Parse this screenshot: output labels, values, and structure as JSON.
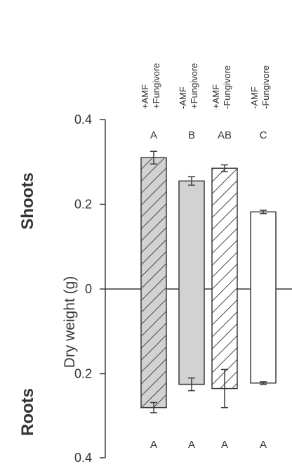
{
  "chart_data": {
    "type": "bar",
    "categories": [
      "+AMF\n+Fungivore",
      "-AMF\n+Fungivore",
      "+AMF\n-Fungivore",
      "-AMF\n-Fungivore"
    ],
    "series": [
      {
        "name": "Shoots",
        "values": [
          0.31,
          0.255,
          0.285,
          0.182
        ],
        "errors": [
          0.015,
          0.01,
          0.008,
          0.004
        ]
      },
      {
        "name": "Roots",
        "values": [
          0.28,
          0.225,
          0.235,
          0.222
        ],
        "errors": [
          0.012,
          0.015,
          0.045,
          0.003
        ]
      }
    ],
    "ylabel": "Dry weight (g)",
    "yticks": [
      "0.4",
      "0.2",
      "0",
      "0.2",
      "0.4"
    ],
    "ylim": [
      -0.4,
      0.4
    ],
    "grid": false,
    "panel_labels": {
      "top": "Shoots",
      "bottom": "Roots"
    },
    "letters": {
      "top": [
        "A",
        "B",
        "AB",
        "C"
      ],
      "bottom": [
        "A",
        "A",
        "A",
        "A"
      ]
    },
    "fills": [
      "hatched-gray",
      "gray",
      "hatched-white",
      "white"
    ],
    "colors": {
      "axis": "#3a3a3a",
      "bar_gray": "#d2d2d2",
      "bar_white": "#ffffff",
      "hatch": "#4a4a4a",
      "text": "#2b2b2b"
    }
  }
}
